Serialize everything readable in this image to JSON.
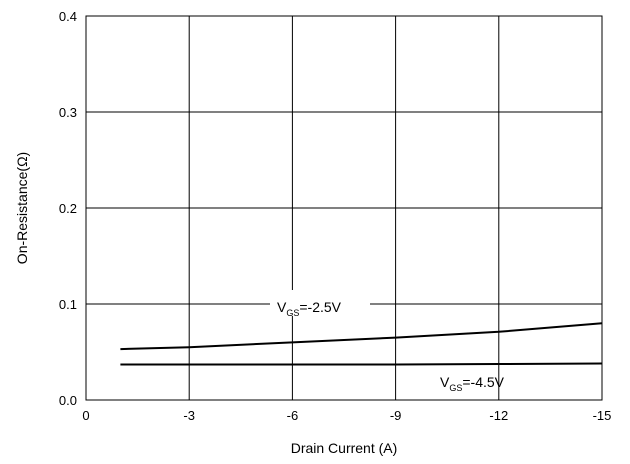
{
  "chart_data": {
    "type": "line",
    "title": "",
    "xlabel": "Drain Current (A)",
    "ylabel": "On-Resistance(Ω)",
    "xlim": [
      0,
      -15
    ],
    "ylim": [
      0,
      0.4
    ],
    "x_ticks": [
      0,
      -3,
      -6,
      -9,
      -12,
      -15
    ],
    "x_tick_labels": [
      "0",
      "-3",
      "-6",
      "-9",
      "-12",
      "-15"
    ],
    "y_ticks": [
      0.0,
      0.1,
      0.2,
      0.3,
      0.4
    ],
    "y_tick_labels": [
      "0.0",
      "0.1",
      "0.2",
      "0.3",
      "0.4"
    ],
    "grid": true,
    "series": [
      {
        "x": [
          -1,
          -3,
          -6,
          -9,
          -12,
          -15
        ],
        "y": [
          0.053,
          0.055,
          0.06,
          0.065,
          0.071,
          0.08
        ]
      },
      {
        "x": [
          -1,
          -3,
          -6,
          -9,
          -12,
          -15
        ],
        "y": [
          0.037,
          0.037,
          0.037,
          0.037,
          0.0375,
          0.038
        ]
      }
    ],
    "annotations": [
      {
        "main": "V",
        "sub": "GS",
        "rest": "=-2.5V"
      },
      {
        "main": "V",
        "sub": "GS",
        "rest": "=-4.5V"
      }
    ]
  }
}
